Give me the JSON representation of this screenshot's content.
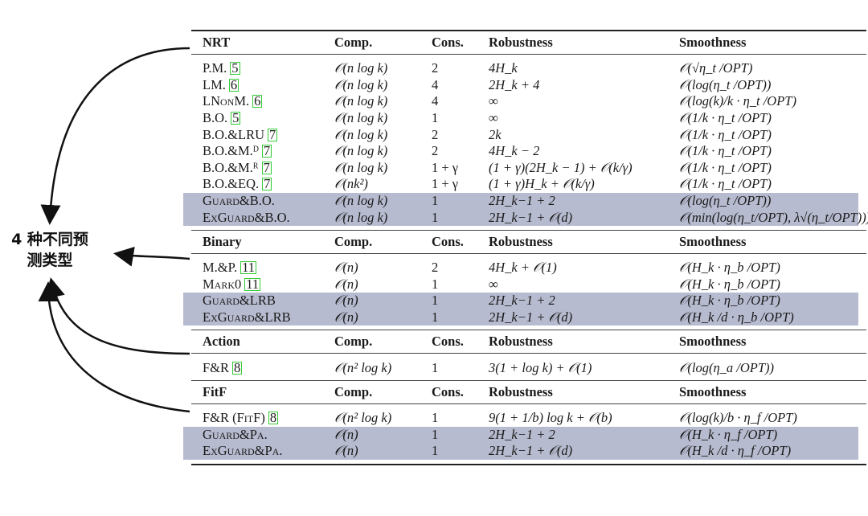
{
  "annotation": {
    "line1": "4 种不同预",
    "line2": "测类型"
  },
  "headers": {
    "comp": "Comp.",
    "cons": "Cons.",
    "rob": "Robustness",
    "smooth": "Smoothness"
  },
  "highlight_color": "#b7bbcf",
  "ref_box_color": "#33cc33",
  "sections": [
    {
      "title": "NRT",
      "rows": [
        {
          "name": "P.M.",
          "ref": "5",
          "comp": "𝒪(n log k)",
          "cons": "2",
          "rob": "4H_k",
          "smooth": "𝒪(√η_t /OPT)",
          "hl": false
        },
        {
          "name": "LM.",
          "ref": "6",
          "comp": "𝒪(n log k)",
          "cons": "4",
          "rob": "2H_k + 4",
          "smooth": "𝒪(log(η_t /OPT))",
          "hl": false
        },
        {
          "name": "LNonM.",
          "ref": "6",
          "comp": "𝒪(n log k)",
          "cons": "4",
          "rob": "∞",
          "smooth": "𝒪(log(k)/k · η_t /OPT)",
          "hl": false
        },
        {
          "name": "B.O.",
          "ref": "5",
          "comp": "𝒪(n log k)",
          "cons": "1",
          "rob": "∞",
          "smooth": "𝒪(1/k · η_t /OPT)",
          "hl": false
        },
        {
          "name": "B.O.&LRU",
          "ref": "7",
          "comp": "𝒪(n log k)",
          "cons": "2",
          "rob": "2k",
          "smooth": "𝒪(1/k · η_t /OPT)",
          "hl": false
        },
        {
          "name": "B.O.&M.ᴰ",
          "ref": "7",
          "comp": "𝒪(n log k)",
          "cons": "2",
          "rob": "4H_k − 2",
          "smooth": "𝒪(1/k · η_t /OPT)",
          "hl": false
        },
        {
          "name": "B.O.&M.ᴿ",
          "ref": "7",
          "comp": "𝒪(n log k)",
          "cons": "1 + γ",
          "rob": "(1 + γ)(2H_k − 1) + 𝒪(k/γ)",
          "smooth": "𝒪(1/k · η_t /OPT)",
          "hl": false
        },
        {
          "name": "B.O.&EQ.",
          "ref": "7",
          "comp": "𝒪(nk²)",
          "cons": "1 + γ",
          "rob": "(1 + γ)H_k + 𝒪(k/γ)",
          "smooth": "𝒪(1/k · η_t /OPT)",
          "hl": false
        },
        {
          "name": "Guard&B.O.",
          "ref": null,
          "comp": "𝒪(n log k)",
          "cons": "1",
          "rob": "2H_k−1 + 2",
          "smooth": "𝒪(log(η_t /OPT))",
          "hl": true
        },
        {
          "name": "ExGuard&B.O.",
          "ref": null,
          "comp": "𝒪(n log k)",
          "cons": "1",
          "rob": "2H_k−1 + 𝒪(d)",
          "smooth": "𝒪(min(log(η_t/OPT), λ√(η_t/OPT)))",
          "hl": true
        }
      ]
    },
    {
      "title": "Binary",
      "rows": [
        {
          "name": "M.&P.",
          "ref": "11",
          "comp": "𝒪(n)",
          "cons": "2",
          "rob": "4H_k + 𝒪(1)",
          "smooth": "𝒪(H_k · η_b /OPT)",
          "hl": false
        },
        {
          "name": "Mark0",
          "ref": "11",
          "comp": "𝒪(n)",
          "cons": "1",
          "rob": "∞",
          "smooth": "𝒪(H_k · η_b /OPT)",
          "hl": false
        },
        {
          "name": "Guard&LRB",
          "ref": null,
          "comp": "𝒪(n)",
          "cons": "1",
          "rob": "2H_k−1 + 2",
          "smooth": "𝒪(H_k · η_b /OPT)",
          "hl": true
        },
        {
          "name": "ExGuard&LRB",
          "ref": null,
          "comp": "𝒪(n)",
          "cons": "1",
          "rob": "2H_k−1 + 𝒪(d)",
          "smooth": "𝒪(H_k /d · η_b /OPT)",
          "hl": true
        }
      ]
    },
    {
      "title": "Action",
      "rows": [
        {
          "name": "F&R",
          "ref": "8",
          "comp": "𝒪(n² log k)",
          "cons": "1",
          "rob": "3(1 + log k) + 𝒪(1)",
          "smooth": "𝒪(log(η_a /OPT))",
          "hl": false
        }
      ]
    },
    {
      "title": "FitF",
      "rows": [
        {
          "name": "F&R (FitF)",
          "ref": "8",
          "comp": "𝒪(n² log k)",
          "cons": "1",
          "rob": "9(1 + 1/b) log k + 𝒪(b)",
          "smooth": "𝒪(log(k)/b · η_f /OPT)",
          "hl": false
        },
        {
          "name": "Guard&Pa.",
          "ref": null,
          "comp": "𝒪(n)",
          "cons": "1",
          "rob": "2H_k−1 + 2",
          "smooth": "𝒪(H_k · η_f /OPT)",
          "hl": true
        },
        {
          "name": "ExGuard&Pa.",
          "ref": null,
          "comp": "𝒪(n)",
          "cons": "1",
          "rob": "2H_k−1 + 𝒪(d)",
          "smooth": "𝒪(H_k /d · η_f /OPT)",
          "hl": true
        }
      ]
    }
  ]
}
